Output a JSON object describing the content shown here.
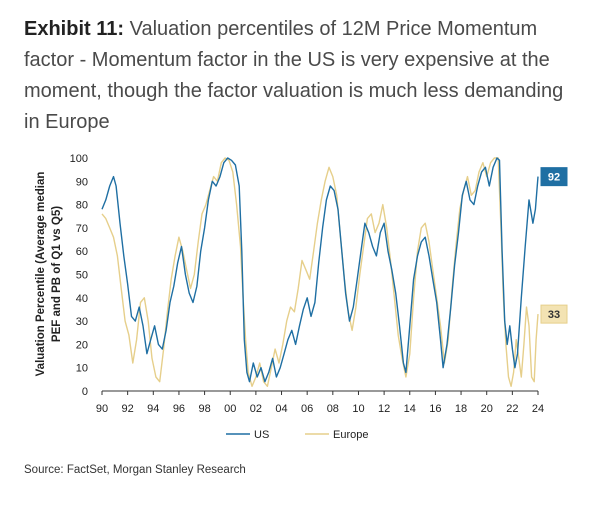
{
  "header": {
    "lead": "Exhibit 11:",
    "text": "Valuation percentiles of 12M Price Momentum factor - Momentum factor in the US is very expensive at the moment, though the factor valuation is much less demanding in Europe"
  },
  "source": "Source: FactSet, Morgan Stanley Research",
  "chart_data": {
    "type": "line",
    "ylabel_lines": [
      "Valuation Percentile (Average median",
      "PEF and PB of Q1 vs Q5)"
    ],
    "xlabel": "",
    "xlim": [
      1990,
      2024
    ],
    "ylim": [
      0,
      100
    ],
    "x_ticks": [
      1990,
      1992,
      1994,
      1996,
      1998,
      2000,
      2002,
      2004,
      2006,
      2008,
      2010,
      2012,
      2014,
      2016,
      2018,
      2020,
      2022,
      2024
    ],
    "x_tick_labels": [
      "90",
      "92",
      "94",
      "96",
      "98",
      "00",
      "02",
      "04",
      "06",
      "08",
      "10",
      "12",
      "14",
      "16",
      "18",
      "20",
      "22",
      "24"
    ],
    "y_ticks": [
      0,
      10,
      20,
      30,
      40,
      50,
      60,
      70,
      80,
      90,
      100
    ],
    "y_tick_labels": [
      "0",
      "10",
      "20",
      "30",
      "40",
      "50",
      "60",
      "70",
      "80",
      "90",
      "100"
    ],
    "grid": false,
    "legend_position": "bottom",
    "series": [
      {
        "name": "US",
        "color": "#1f6fa3",
        "last_value_label": "92",
        "points": [
          [
            1990.0,
            78
          ],
          [
            1990.3,
            82
          ],
          [
            1990.6,
            88
          ],
          [
            1990.9,
            92
          ],
          [
            1991.1,
            88
          ],
          [
            1991.4,
            72
          ],
          [
            1991.7,
            58
          ],
          [
            1992.0,
            46
          ],
          [
            1992.3,
            32
          ],
          [
            1992.6,
            30
          ],
          [
            1992.9,
            36
          ],
          [
            1993.2,
            28
          ],
          [
            1993.5,
            16
          ],
          [
            1993.8,
            22
          ],
          [
            1994.1,
            28
          ],
          [
            1994.4,
            20
          ],
          [
            1994.7,
            18
          ],
          [
            1995.0,
            26
          ],
          [
            1995.3,
            38
          ],
          [
            1995.6,
            45
          ],
          [
            1995.9,
            55
          ],
          [
            1996.2,
            62
          ],
          [
            1996.5,
            50
          ],
          [
            1996.8,
            42
          ],
          [
            1997.1,
            38
          ],
          [
            1997.4,
            45
          ],
          [
            1997.7,
            60
          ],
          [
            1998.0,
            70
          ],
          [
            1998.3,
            82
          ],
          [
            1998.6,
            90
          ],
          [
            1998.9,
            88
          ],
          [
            1999.2,
            92
          ],
          [
            1999.5,
            98
          ],
          [
            1999.8,
            100
          ],
          [
            2000.1,
            99
          ],
          [
            2000.4,
            97
          ],
          [
            2000.7,
            88
          ],
          [
            2000.9,
            60
          ],
          [
            2001.1,
            22
          ],
          [
            2001.3,
            8
          ],
          [
            2001.5,
            4
          ],
          [
            2001.8,
            12
          ],
          [
            2002.1,
            6
          ],
          [
            2002.4,
            10
          ],
          [
            2002.7,
            4
          ],
          [
            2003.0,
            8
          ],
          [
            2003.3,
            14
          ],
          [
            2003.6,
            6
          ],
          [
            2003.9,
            10
          ],
          [
            2004.2,
            16
          ],
          [
            2004.5,
            22
          ],
          [
            2004.8,
            26
          ],
          [
            2005.1,
            20
          ],
          [
            2005.4,
            28
          ],
          [
            2005.7,
            35
          ],
          [
            2006.0,
            40
          ],
          [
            2006.3,
            32
          ],
          [
            2006.6,
            38
          ],
          [
            2006.9,
            55
          ],
          [
            2007.2,
            70
          ],
          [
            2007.5,
            82
          ],
          [
            2007.8,
            88
          ],
          [
            2008.1,
            86
          ],
          [
            2008.4,
            78
          ],
          [
            2008.7,
            60
          ],
          [
            2009.0,
            42
          ],
          [
            2009.3,
            30
          ],
          [
            2009.6,
            36
          ],
          [
            2009.9,
            48
          ],
          [
            2010.2,
            60
          ],
          [
            2010.5,
            72
          ],
          [
            2010.8,
            68
          ],
          [
            2011.1,
            62
          ],
          [
            2011.4,
            58
          ],
          [
            2011.7,
            68
          ],
          [
            2012.0,
            72
          ],
          [
            2012.3,
            60
          ],
          [
            2012.6,
            52
          ],
          [
            2012.9,
            42
          ],
          [
            2013.2,
            28
          ],
          [
            2013.5,
            12
          ],
          [
            2013.7,
            8
          ],
          [
            2014.0,
            28
          ],
          [
            2014.3,
            48
          ],
          [
            2014.6,
            58
          ],
          [
            2014.9,
            64
          ],
          [
            2015.2,
            66
          ],
          [
            2015.5,
            58
          ],
          [
            2015.8,
            48
          ],
          [
            2016.1,
            38
          ],
          [
            2016.4,
            22
          ],
          [
            2016.6,
            10
          ],
          [
            2016.9,
            20
          ],
          [
            2017.2,
            36
          ],
          [
            2017.5,
            54
          ],
          [
            2017.8,
            68
          ],
          [
            2018.1,
            84
          ],
          [
            2018.4,
            90
          ],
          [
            2018.7,
            82
          ],
          [
            2019.0,
            80
          ],
          [
            2019.3,
            88
          ],
          [
            2019.6,
            94
          ],
          [
            2019.9,
            96
          ],
          [
            2020.2,
            88
          ],
          [
            2020.5,
            96
          ],
          [
            2020.8,
            100
          ],
          [
            2021.0,
            99
          ],
          [
            2021.2,
            60
          ],
          [
            2021.4,
            30
          ],
          [
            2021.6,
            20
          ],
          [
            2021.8,
            28
          ],
          [
            2022.0,
            18
          ],
          [
            2022.2,
            10
          ],
          [
            2022.4,
            16
          ],
          [
            2022.7,
            40
          ],
          [
            2023.0,
            62
          ],
          [
            2023.3,
            82
          ],
          [
            2023.6,
            72
          ],
          [
            2023.8,
            78
          ],
          [
            2024.0,
            92
          ]
        ]
      },
      {
        "name": "Europe",
        "color": "#e6cf8b",
        "last_value_label": "33",
        "points": [
          [
            1990.0,
            76
          ],
          [
            1990.3,
            74
          ],
          [
            1990.6,
            70
          ],
          [
            1990.9,
            66
          ],
          [
            1991.2,
            58
          ],
          [
            1991.5,
            44
          ],
          [
            1991.8,
            30
          ],
          [
            1992.1,
            24
          ],
          [
            1992.4,
            12
          ],
          [
            1992.7,
            22
          ],
          [
            1993.0,
            38
          ],
          [
            1993.3,
            40
          ],
          [
            1993.6,
            30
          ],
          [
            1993.9,
            14
          ],
          [
            1994.2,
            6
          ],
          [
            1994.5,
            4
          ],
          [
            1994.8,
            18
          ],
          [
            1995.1,
            34
          ],
          [
            1995.4,
            48
          ],
          [
            1995.7,
            58
          ],
          [
            1996.0,
            66
          ],
          [
            1996.3,
            60
          ],
          [
            1996.6,
            52
          ],
          [
            1996.9,
            44
          ],
          [
            1997.2,
            50
          ],
          [
            1997.5,
            64
          ],
          [
            1997.8,
            76
          ],
          [
            1998.1,
            80
          ],
          [
            1998.4,
            86
          ],
          [
            1998.7,
            92
          ],
          [
            1999.0,
            90
          ],
          [
            1999.3,
            98
          ],
          [
            1999.6,
            100
          ],
          [
            1999.9,
            99
          ],
          [
            2000.2,
            94
          ],
          [
            2000.5,
            80
          ],
          [
            2000.8,
            62
          ],
          [
            2001.0,
            40
          ],
          [
            2001.2,
            22
          ],
          [
            2001.4,
            8
          ],
          [
            2001.7,
            2
          ],
          [
            2002.0,
            6
          ],
          [
            2002.3,
            12
          ],
          [
            2002.6,
            4
          ],
          [
            2002.9,
            2
          ],
          [
            2003.2,
            10
          ],
          [
            2003.5,
            18
          ],
          [
            2003.8,
            12
          ],
          [
            2004.1,
            20
          ],
          [
            2004.4,
            30
          ],
          [
            2004.7,
            36
          ],
          [
            2005.0,
            34
          ],
          [
            2005.3,
            44
          ],
          [
            2005.6,
            56
          ],
          [
            2005.9,
            52
          ],
          [
            2006.2,
            48
          ],
          [
            2006.5,
            60
          ],
          [
            2006.8,
            72
          ],
          [
            2007.1,
            82
          ],
          [
            2007.4,
            90
          ],
          [
            2007.7,
            96
          ],
          [
            2008.0,
            92
          ],
          [
            2008.3,
            84
          ],
          [
            2008.6,
            66
          ],
          [
            2008.9,
            48
          ],
          [
            2009.2,
            34
          ],
          [
            2009.5,
            26
          ],
          [
            2009.8,
            36
          ],
          [
            2010.1,
            50
          ],
          [
            2010.4,
            62
          ],
          [
            2010.7,
            74
          ],
          [
            2011.0,
            76
          ],
          [
            2011.3,
            68
          ],
          [
            2011.6,
            72
          ],
          [
            2011.9,
            80
          ],
          [
            2012.2,
            70
          ],
          [
            2012.5,
            56
          ],
          [
            2012.8,
            40
          ],
          [
            2013.1,
            24
          ],
          [
            2013.4,
            14
          ],
          [
            2013.7,
            6
          ],
          [
            2014.0,
            16
          ],
          [
            2014.3,
            40
          ],
          [
            2014.6,
            60
          ],
          [
            2014.9,
            70
          ],
          [
            2015.2,
            72
          ],
          [
            2015.5,
            64
          ],
          [
            2015.8,
            52
          ],
          [
            2016.1,
            40
          ],
          [
            2016.4,
            28
          ],
          [
            2016.7,
            12
          ],
          [
            2017.0,
            22
          ],
          [
            2017.3,
            44
          ],
          [
            2017.6,
            62
          ],
          [
            2017.9,
            78
          ],
          [
            2018.2,
            86
          ],
          [
            2018.5,
            92
          ],
          [
            2018.8,
            84
          ],
          [
            2019.1,
            86
          ],
          [
            2019.4,
            94
          ],
          [
            2019.7,
            98
          ],
          [
            2020.0,
            92
          ],
          [
            2020.3,
            98
          ],
          [
            2020.6,
            100
          ],
          [
            2020.9,
            100
          ],
          [
            2021.1,
            72
          ],
          [
            2021.3,
            40
          ],
          [
            2021.5,
            20
          ],
          [
            2021.7,
            6
          ],
          [
            2021.9,
            2
          ],
          [
            2022.1,
            8
          ],
          [
            2022.3,
            22
          ],
          [
            2022.5,
            14
          ],
          [
            2022.7,
            6
          ],
          [
            2022.9,
            20
          ],
          [
            2023.1,
            36
          ],
          [
            2023.3,
            28
          ],
          [
            2023.5,
            6
          ],
          [
            2023.7,
            4
          ],
          [
            2023.85,
            22
          ],
          [
            2024.0,
            33
          ]
        ]
      }
    ]
  }
}
